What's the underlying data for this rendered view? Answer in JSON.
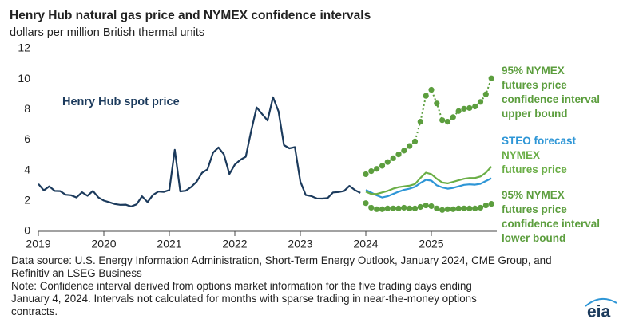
{
  "chart_data": {
    "type": "line",
    "title": "Henry Hub natural gas price and NYMEX confidence intervals",
    "subtitle": "dollars per million British thermal units",
    "x": [
      2019,
      2019.083,
      2019.167,
      2019.25,
      2019.333,
      2019.417,
      2019.5,
      2019.583,
      2019.667,
      2019.75,
      2019.833,
      2019.917,
      2020,
      2020.083,
      2020.167,
      2020.25,
      2020.333,
      2020.417,
      2020.5,
      2020.583,
      2020.667,
      2020.75,
      2020.833,
      2020.917,
      2021,
      2021.083,
      2021.167,
      2021.25,
      2021.333,
      2021.417,
      2021.5,
      2021.583,
      2021.667,
      2021.75,
      2021.833,
      2021.917,
      2022,
      2022.083,
      2022.167,
      2022.25,
      2022.333,
      2022.417,
      2022.5,
      2022.583,
      2022.667,
      2022.75,
      2022.833,
      2022.917,
      2023,
      2023.083,
      2023.167,
      2023.25,
      2023.333,
      2023.417,
      2023.5,
      2023.583,
      2023.667,
      2023.75,
      2023.833,
      2023.917,
      2024,
      2024.083,
      2024.167,
      2024.25,
      2024.333,
      2024.417,
      2024.5,
      2024.583,
      2024.667,
      2024.75,
      2024.833,
      2024.917,
      2025,
      2025.083,
      2025.167,
      2025.25,
      2025.333,
      2025.417,
      2025.5,
      2025.583,
      2025.667,
      2025.75,
      2025.833,
      2025.917
    ],
    "series": [
      {
        "name": "Henry Hub spot price",
        "color": "#1b3a5c",
        "values": [
          3.11,
          2.69,
          2.95,
          2.65,
          2.64,
          2.4,
          2.37,
          2.22,
          2.56,
          2.33,
          2.65,
          2.22,
          2.02,
          1.91,
          1.79,
          1.74,
          1.75,
          1.63,
          1.77,
          2.3,
          1.92,
          2.39,
          2.61,
          2.59,
          2.71,
          5.35,
          2.62,
          2.66,
          2.91,
          3.26,
          3.84,
          4.07,
          5.16,
          5.51,
          5.05,
          3.76,
          4.38,
          4.69,
          4.9,
          6.6,
          8.14,
          7.7,
          7.28,
          8.81,
          7.88,
          5.66,
          5.45,
          5.53,
          3.27,
          2.38,
          2.31,
          2.16,
          2.15,
          2.18,
          2.55,
          2.58,
          2.64,
          2.98,
          2.71,
          2.52,
          null,
          null,
          null,
          null,
          null,
          null,
          null,
          null,
          null,
          null,
          null,
          null,
          null,
          null,
          null,
          null,
          null,
          null,
          null,
          null,
          null,
          null,
          null,
          null
        ]
      },
      {
        "name": "95% NYMEX futures price confidence interval upper bound",
        "color": "#5c9e3e",
        "dash": "dotted",
        "markers": true,
        "values": [
          null,
          null,
          null,
          null,
          null,
          null,
          null,
          null,
          null,
          null,
          null,
          null,
          null,
          null,
          null,
          null,
          null,
          null,
          null,
          null,
          null,
          null,
          null,
          null,
          null,
          null,
          null,
          null,
          null,
          null,
          null,
          null,
          null,
          null,
          null,
          null,
          null,
          null,
          null,
          null,
          null,
          null,
          null,
          null,
          null,
          null,
          null,
          null,
          null,
          null,
          null,
          null,
          null,
          null,
          null,
          null,
          null,
          null,
          null,
          null,
          3.75,
          3.95,
          4.1,
          4.3,
          4.55,
          4.8,
          5.05,
          5.3,
          5.6,
          5.9,
          7.2,
          8.9,
          9.3,
          8.4,
          7.3,
          7.2,
          7.5,
          7.9,
          8.05,
          8.1,
          8.2,
          8.5,
          9.0,
          10.05
        ]
      },
      {
        "name": "STEO forecast",
        "color": "#2e96d6",
        "values": [
          null,
          null,
          null,
          null,
          null,
          null,
          null,
          null,
          null,
          null,
          null,
          null,
          null,
          null,
          null,
          null,
          null,
          null,
          null,
          null,
          null,
          null,
          null,
          null,
          null,
          null,
          null,
          null,
          null,
          null,
          null,
          null,
          null,
          null,
          null,
          null,
          null,
          null,
          null,
          null,
          null,
          null,
          null,
          null,
          null,
          null,
          null,
          null,
          null,
          null,
          null,
          null,
          null,
          null,
          null,
          null,
          null,
          null,
          null,
          null,
          2.71,
          2.54,
          2.36,
          2.22,
          2.3,
          2.45,
          2.6,
          2.72,
          2.8,
          2.92,
          3.17,
          3.38,
          3.33,
          3.02,
          2.88,
          2.8,
          2.85,
          2.95,
          3.05,
          3.08,
          3.06,
          3.12,
          3.3,
          3.48
        ]
      },
      {
        "name": "NYMEX futures price",
        "color": "#6aae46",
        "values": [
          null,
          null,
          null,
          null,
          null,
          null,
          null,
          null,
          null,
          null,
          null,
          null,
          null,
          null,
          null,
          null,
          null,
          null,
          null,
          null,
          null,
          null,
          null,
          null,
          null,
          null,
          null,
          null,
          null,
          null,
          null,
          null,
          null,
          null,
          null,
          null,
          null,
          null,
          null,
          null,
          null,
          null,
          null,
          null,
          null,
          null,
          null,
          null,
          null,
          null,
          null,
          null,
          null,
          null,
          null,
          null,
          null,
          null,
          null,
          null,
          2.6,
          2.45,
          2.45,
          2.55,
          2.65,
          2.8,
          2.9,
          2.95,
          3.0,
          3.1,
          3.5,
          3.85,
          3.75,
          3.45,
          3.2,
          3.15,
          3.25,
          3.35,
          3.45,
          3.5,
          3.5,
          3.6,
          3.85,
          4.25
        ]
      },
      {
        "name": "95% NYMEX futures price confidence interval lower bound",
        "color": "#5c9e3e",
        "dash": "dotted",
        "markers": true,
        "values": [
          null,
          null,
          null,
          null,
          null,
          null,
          null,
          null,
          null,
          null,
          null,
          null,
          null,
          null,
          null,
          null,
          null,
          null,
          null,
          null,
          null,
          null,
          null,
          null,
          null,
          null,
          null,
          null,
          null,
          null,
          null,
          null,
          null,
          null,
          null,
          null,
          null,
          null,
          null,
          null,
          null,
          null,
          null,
          null,
          null,
          null,
          null,
          null,
          null,
          null,
          null,
          null,
          null,
          null,
          null,
          null,
          null,
          null,
          null,
          null,
          1.85,
          1.55,
          1.45,
          1.45,
          1.5,
          1.5,
          1.5,
          1.55,
          1.5,
          1.5,
          1.6,
          1.7,
          1.65,
          1.5,
          1.4,
          1.45,
          1.45,
          1.5,
          1.5,
          1.5,
          1.5,
          1.55,
          1.7,
          1.8
        ]
      }
    ],
    "xlim": [
      2019,
      2026
    ],
    "xticks": [
      2019,
      2020,
      2021,
      2022,
      2023,
      2024,
      2025
    ],
    "ylim": [
      0,
      12
    ],
    "yticks": [
      0,
      2,
      4,
      6,
      8,
      10,
      12
    ],
    "grid": false,
    "source": "Data source: U.S. Energy Information Administration, Short-Term Energy Outlook, January 2024, CME Group, and Refinitiv an LSEG Business",
    "note": "Note: Confidence interval derived from options market information for the five trading days ending January 4, 2024. Intervals not calculated for months with sparse trading in near-the-money options contracts.",
    "logo": "eia"
  }
}
